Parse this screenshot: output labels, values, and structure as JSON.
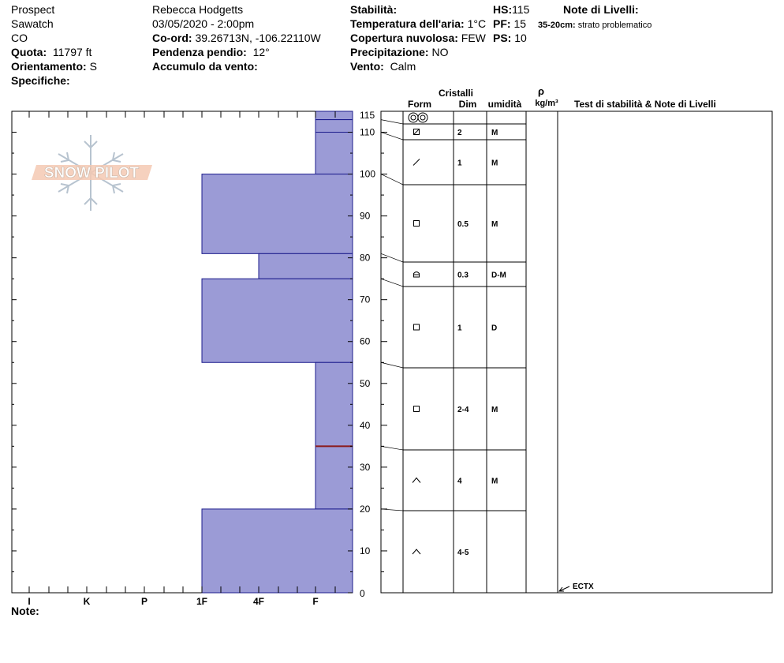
{
  "header": {
    "col1": {
      "location": "Prospect",
      "range": "Sawatch",
      "state": "CO",
      "elevation_label": "Quota:",
      "elevation_value": "11797 ft",
      "aspect_label": "Orientamento:",
      "aspect_value": "S",
      "specifics_label": "Specifiche:"
    },
    "col2": {
      "observer": "Rebecca Hodgetts",
      "datetime": "03/05/2020 - 2:00pm",
      "coord_label": "Co-ord:",
      "coord_value": "39.26713N, -106.22110W",
      "slope_label": "Pendenza pendio:",
      "slope_value": "12°",
      "wind_loading_label": "Accumulo da vento:"
    },
    "col3": {
      "stability_label": "Stabilità:",
      "air_temp_label": "Temperatura dell'aria:",
      "air_temp_value": "1°C",
      "cloud_label": "Copertura nuvolosa:",
      "cloud_value": "FEW",
      "precip_label": "Precipitazione:",
      "precip_value": "NO",
      "wind_label": "Vento:",
      "wind_value": "Calm"
    },
    "col4": {
      "hs_label": "HS:",
      "hs_value": "115",
      "pf_label": "PF:",
      "pf_value": "15",
      "ps_label": "PS:",
      "ps_value": "10"
    },
    "layer_notes": {
      "title": "Note di Livelli:",
      "note_range": "35-20cm:",
      "note_text": "strato problematico"
    }
  },
  "logo_text": "SNOW PILOT",
  "table_headers": {
    "crystals": "Cristalli",
    "form": "Form",
    "size": "Dim",
    "moisture": "umidità",
    "density_symbol": "ρ",
    "density_unit": "kg/m³",
    "stability_notes": "Test di stabilità & Note di Livelli"
  },
  "note_label": "Note:",
  "colors": {
    "layer_fill": "#9b9bd6",
    "layer_stroke": "#1c1c8c",
    "weak_layer_line": "#8b1a1a",
    "grid": "#000000"
  },
  "chart_data": {
    "type": "bar",
    "orientation": "horizontal",
    "y_axis_label": "",
    "y_ticks": [
      0,
      10,
      20,
      30,
      40,
      50,
      60,
      70,
      80,
      90,
      100,
      110,
      115
    ],
    "ylim": [
      0,
      115
    ],
    "hardness_scale": [
      "I",
      "K",
      "P",
      "1F",
      "4F",
      "F"
    ],
    "layers": [
      {
        "bottom": 113,
        "top": 115,
        "hardness": "F",
        "form_icon": "graupel-icon",
        "size": "",
        "moisture": ""
      },
      {
        "bottom": 110,
        "top": 113,
        "hardness": "F",
        "form_icon": "rounded-facet-icon",
        "size": "2",
        "moisture": "M"
      },
      {
        "bottom": 100,
        "top": 110,
        "hardness": "F",
        "form_icon": "decomposing-icon",
        "size": "1",
        "moisture": "M"
      },
      {
        "bottom": 81,
        "top": 100,
        "hardness": "1F",
        "form_icon": "facet-icon",
        "size": "0.5",
        "moisture": "M"
      },
      {
        "bottom": 75,
        "top": 81,
        "hardness": "4F",
        "form_icon": "facet-rounding-icon",
        "size": "0.3",
        "moisture": "D-M"
      },
      {
        "bottom": 55,
        "top": 75,
        "hardness": "1F",
        "form_icon": "facet-icon",
        "size": "1",
        "moisture": "D"
      },
      {
        "bottom": 35,
        "top": 55,
        "hardness": "F",
        "form_icon": "facet-icon",
        "size": "2-4",
        "moisture": "M"
      },
      {
        "bottom": 20,
        "top": 35,
        "hardness": "F",
        "form_icon": "depth-hoar-icon",
        "size": "4",
        "moisture": "M"
      },
      {
        "bottom": 0,
        "top": 20,
        "hardness": "1F",
        "form_icon": "depth-hoar-icon",
        "size": "4-5",
        "moisture": ""
      }
    ],
    "weak_layer_depth": 35,
    "stability_tests": [
      {
        "depth": 0,
        "label": "ECTX"
      }
    ]
  }
}
